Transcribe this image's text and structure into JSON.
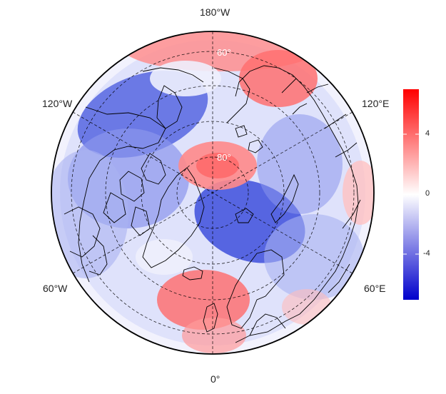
{
  "map": {
    "projection": "north-polar-stereographic",
    "lon_labels": {
      "top": "180°W",
      "bottom": "0°",
      "upper_left": "120°W",
      "upper_right": "120°E",
      "lower_left": "60°W",
      "lower_right": "60°E"
    },
    "lat_labels": [
      "60°",
      "80°"
    ],
    "grid": "dashed",
    "colorscale": {
      "low": "#0000cc",
      "mid": "#ffffff",
      "high": "#ff0000"
    }
  },
  "colorbar": {
    "ticks": [
      "4",
      "0",
      "-4"
    ],
    "range": [
      -7,
      7
    ]
  }
}
